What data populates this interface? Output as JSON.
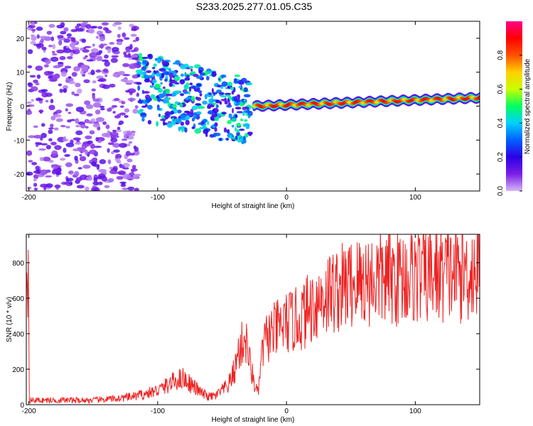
{
  "title": "S233.2025.277.01.05.C35",
  "chart_data": [
    {
      "type": "heatmap",
      "name": "spectrogram",
      "xlabel": "Height of straight line (km)",
      "ylabel": "Frequency (Hz)",
      "xlim": [
        -202,
        150
      ],
      "ylim": [
        -25,
        25
      ],
      "xticks": [
        -200,
        -100,
        0,
        100
      ],
      "yticks": [
        -20,
        -10,
        0,
        10,
        20
      ],
      "xtick_labels": [
        "-200",
        "-100",
        "0",
        "100"
      ],
      "ytick_labels": [
        "-20",
        "-10",
        "0",
        "10",
        "20"
      ],
      "colorbar": {
        "label": "Normalized spectral amplitude",
        "range": [
          0,
          1
        ],
        "ticks": [
          0.0,
          0.2,
          0.4,
          0.6,
          0.8
        ],
        "tick_labels": [
          "0.0",
          "0.2",
          "0.4",
          "0.6",
          "0.8"
        ],
        "colormap": [
          "#ffffff",
          "#d6b8f7",
          "#7a1ee6",
          "#2c00e8",
          "#0060ff",
          "#00d0ff",
          "#00ff60",
          "#c8ff00",
          "#ffd000",
          "#ff5000",
          "#ff0000",
          "#ff0088"
        ]
      },
      "regions": [
        {
          "name": "diffuse-noise",
          "x": [
            -200,
            -115
          ],
          "freq": [
            -25,
            25
          ],
          "amplitude": 0.1
        },
        {
          "name": "scattered-echo",
          "x": [
            -115,
            -28
          ],
          "freq": [
            -13,
            12
          ],
          "amplitude": 0.25
        },
        {
          "name": "coherent-line",
          "x": [
            -25,
            150
          ],
          "freq_start": 0.0,
          "freq_end": 2.5,
          "amplitude": 0.9
        }
      ]
    },
    {
      "type": "line",
      "name": "snr",
      "xlabel": "Height of straight line (km)",
      "ylabel": "SNR (10 * v/v)",
      "xlim": [
        -202,
        150
      ],
      "ylim": [
        0,
        960
      ],
      "xticks": [
        -200,
        -100,
        0,
        100
      ],
      "yticks": [
        0,
        200,
        400,
        600,
        800
      ],
      "xtick_labels": [
        "-200",
        "-100",
        "0",
        "100"
      ],
      "ytick_labels": [
        "0",
        "200",
        "400",
        "600",
        "800"
      ],
      "color": "#ee2222",
      "series": [
        {
          "name": "SNR",
          "x": [
            -200,
            -190,
            -180,
            -170,
            -160,
            -150,
            -140,
            -130,
            -120,
            -110,
            -100,
            -95,
            -90,
            -85,
            -80,
            -75,
            -70,
            -65,
            -60,
            -55,
            -50,
            -45,
            -40,
            -38,
            -35,
            -32,
            -30,
            -28,
            -25,
            -22,
            -20,
            -18,
            -15,
            -12,
            -10,
            -8,
            -5,
            -2,
            0,
            5,
            10,
            15,
            20,
            25,
            30,
            40,
            50,
            60,
            70,
            80,
            90,
            100,
            110,
            120,
            130,
            140,
            150
          ],
          "values": [
            25,
            25,
            25,
            25,
            25,
            25,
            30,
            35,
            45,
            60,
            80,
            100,
            120,
            140,
            150,
            120,
            90,
            60,
            45,
            50,
            80,
            110,
            200,
            280,
            330,
            380,
            300,
            220,
            120,
            60,
            220,
            330,
            380,
            400,
            410,
            420,
            440,
            450,
            460,
            470,
            480,
            520,
            560,
            590,
            620,
            650,
            680,
            700,
            710,
            715,
            720,
            730,
            730,
            740,
            745,
            750,
            760
          ]
        }
      ]
    }
  ]
}
